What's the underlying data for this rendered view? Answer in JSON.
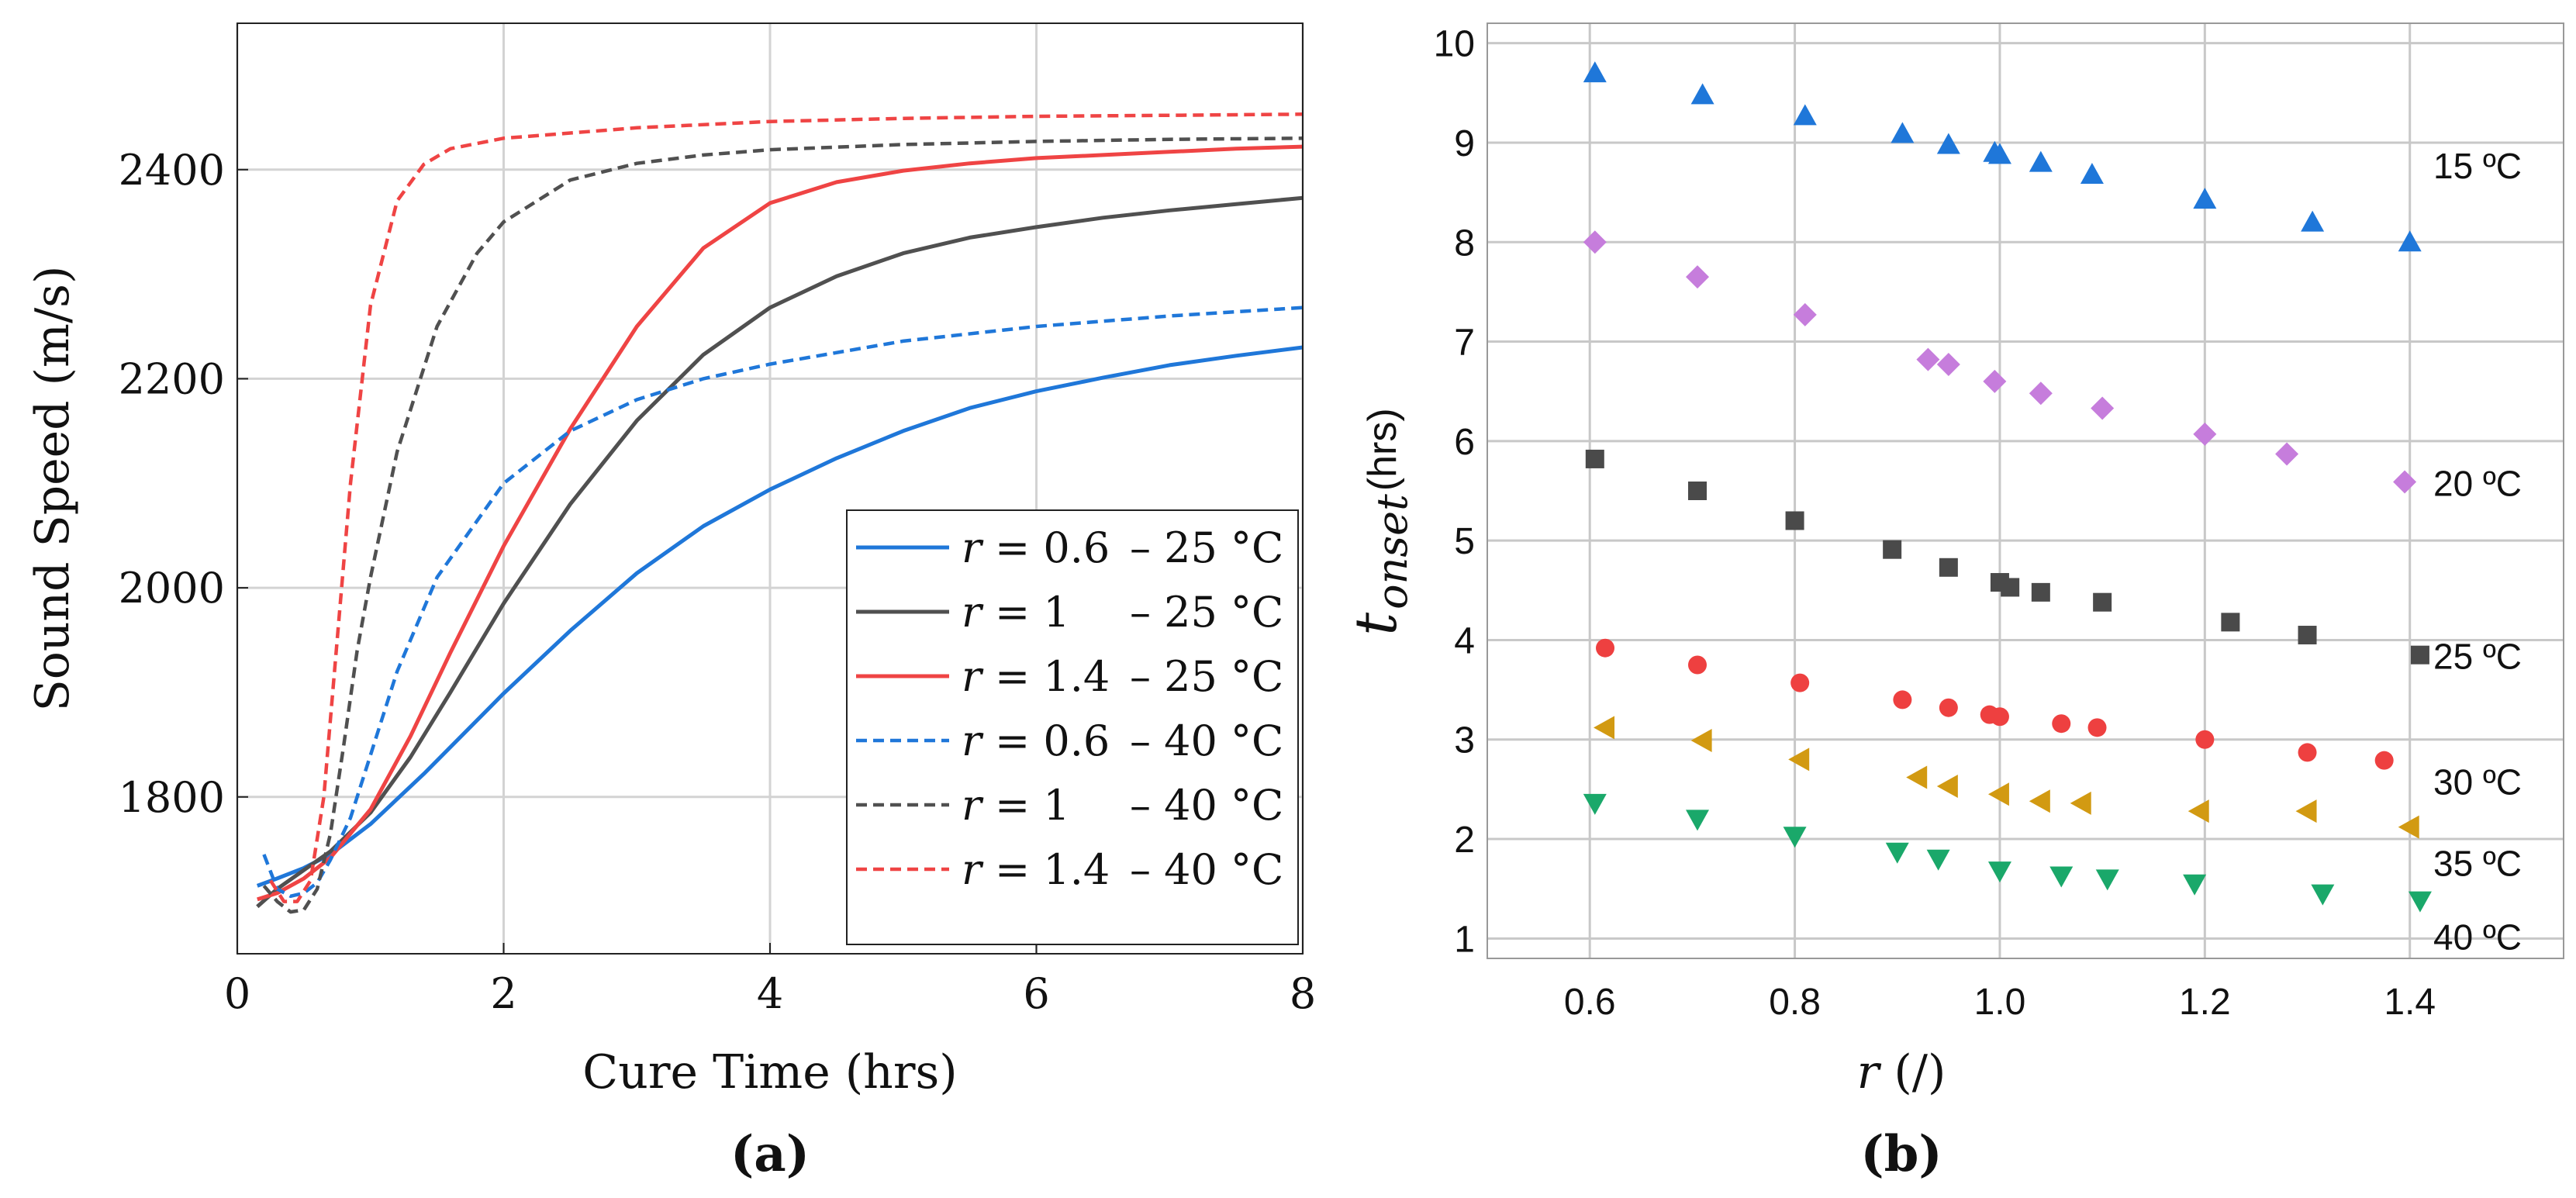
{
  "colors": {
    "blue": "#1f77d9",
    "dark": "#505050",
    "red": "#ef4444",
    "purple": "#c67ddc",
    "gray": "#4a4a4a",
    "red_pt": "#ee4040",
    "orange": "#d29a12",
    "green": "#1aa86a",
    "grid_a": "#d3d3d3",
    "grid_b": "#c8c8c8"
  },
  "chart_data": [
    {
      "panel_label": "(a)",
      "type": "line",
      "title": "",
      "xlabel": "Cure Time (hrs)",
      "ylabel": "Sound Speed (m/s)",
      "xlim": [
        0,
        8
      ],
      "ylim": [
        1650,
        2540
      ],
      "xticks": [
        0,
        2,
        4,
        6,
        8
      ],
      "yticks": [
        1800,
        2000,
        2200,
        2400
      ],
      "grid": true,
      "legend_position": "bottom-right",
      "series": [
        {
          "name": "r = 0.6 – 25 °C",
          "legend_r": "0.6",
          "legend_t": "25 °C",
          "color": "blue",
          "dash": "solid",
          "x": [
            0.15,
            0.3,
            0.5,
            0.7,
            1.0,
            1.4,
            2.0,
            2.5,
            3.0,
            3.5,
            4.0,
            4.5,
            5.0,
            5.5,
            6.0,
            6.5,
            7.0,
            7.5,
            8.0
          ],
          "y": [
            1715,
            1722,
            1732,
            1745,
            1774,
            1822,
            1899,
            1959,
            2014,
            2059,
            2094,
            2124,
            2150,
            2172,
            2188,
            2201,
            2213,
            2222,
            2230
          ]
        },
        {
          "name": "r = 1 – 25 °C",
          "legend_r": "1",
          "legend_t": "25 °C",
          "color": "dark",
          "dash": "solid",
          "x": [
            0.15,
            0.3,
            0.5,
            0.7,
            1.0,
            1.3,
            1.6,
            2.0,
            2.5,
            3.0,
            3.5,
            4.0,
            4.5,
            5.0,
            5.5,
            6.0,
            6.5,
            7.0,
            7.5,
            8.0
          ],
          "y": [
            1695,
            1712,
            1730,
            1748,
            1785,
            1838,
            1900,
            1985,
            2080,
            2160,
            2223,
            2268,
            2298,
            2320,
            2335,
            2345,
            2354,
            2361,
            2367,
            2373
          ]
        },
        {
          "name": "r = 1.4 – 25 °C",
          "legend_r": "1.4",
          "legend_t": "25 °C",
          "color": "red",
          "dash": "solid",
          "x": [
            0.15,
            0.3,
            0.5,
            0.7,
            1.0,
            1.3,
            1.6,
            2.0,
            2.5,
            3.0,
            3.5,
            4.0,
            4.5,
            5.0,
            5.5,
            6.0,
            6.5,
            7.0,
            7.5,
            8.0
          ],
          "y": [
            1702,
            1708,
            1722,
            1742,
            1788,
            1858,
            1938,
            2040,
            2152,
            2250,
            2325,
            2368,
            2388,
            2399,
            2406,
            2411,
            2414,
            2417,
            2420,
            2422
          ]
        },
        {
          "name": "r = 0.6 – 40 °C",
          "legend_r": "0.6",
          "legend_t": "40 °C",
          "color": "blue",
          "dash": "dashed",
          "x": [
            0.2,
            0.3,
            0.4,
            0.5,
            0.6,
            0.7,
            0.85,
            1.0,
            1.2,
            1.5,
            2.0,
            2.5,
            3.0,
            3.5,
            4.0,
            5.0,
            6.0,
            7.0,
            8.0
          ],
          "y": [
            1745,
            1712,
            1705,
            1708,
            1718,
            1740,
            1780,
            1840,
            1920,
            2010,
            2100,
            2150,
            2180,
            2200,
            2214,
            2236,
            2250,
            2260,
            2268
          ]
        },
        {
          "name": "r = 1 – 40 °C",
          "legend_r": "1",
          "legend_t": "40 °C",
          "color": "dark",
          "dash": "dashed",
          "x": [
            0.2,
            0.3,
            0.4,
            0.5,
            0.6,
            0.7,
            0.8,
            0.9,
            1.0,
            1.2,
            1.5,
            1.8,
            2.0,
            2.5,
            3.0,
            3.5,
            4.0,
            5.0,
            6.0,
            7.0,
            8.0
          ],
          "y": [
            1715,
            1700,
            1690,
            1692,
            1712,
            1765,
            1850,
            1940,
            2010,
            2130,
            2250,
            2320,
            2350,
            2390,
            2406,
            2414,
            2419,
            2424,
            2427,
            2429,
            2430
          ]
        },
        {
          "name": "r = 1.4 – 40 °C",
          "legend_r": "1.4",
          "legend_t": "40 °C",
          "color": "red",
          "dash": "dashed",
          "x": [
            0.25,
            0.35,
            0.45,
            0.55,
            0.65,
            0.75,
            0.85,
            1.0,
            1.2,
            1.4,
            1.6,
            2.0,
            3.0,
            4.0,
            5.0,
            6.0,
            7.0,
            8.0
          ],
          "y": [
            1720,
            1700,
            1700,
            1720,
            1800,
            1950,
            2100,
            2270,
            2370,
            2405,
            2420,
            2430,
            2440,
            2446,
            2449,
            2451,
            2452,
            2453
          ]
        }
      ]
    },
    {
      "panel_label": "(b)",
      "type": "scatter",
      "title": "",
      "xlabel": "r (/)",
      "xlabel_r": "r",
      "xlabel_unit": "(/)",
      "ylabel": "t_onset (hrs)",
      "ylabel_main": "t",
      "ylabel_sub": "onset",
      "ylabel_unit": "(hrs)",
      "xlim": [
        0.5,
        1.55
      ],
      "ylim": [
        0.8,
        10.2
      ],
      "xticks": [
        "0.6",
        "0.8",
        "1.0",
        "1.2",
        "1.4"
      ],
      "yticks": [
        "1",
        "2",
        "3",
        "4",
        "5",
        "6",
        "7",
        "8",
        "9",
        "10"
      ],
      "grid": true,
      "series": [
        {
          "name": "15 ºC",
          "marker": "triangle-up",
          "color": "blue",
          "x": [
            0.605,
            0.71,
            0.81,
            0.905,
            0.95,
            0.995,
            1.0,
            1.04,
            1.09,
            1.2,
            1.305,
            1.4
          ],
          "y": [
            9.7,
            9.48,
            9.27,
            9.09,
            8.98,
            8.9,
            8.88,
            8.8,
            8.68,
            8.43,
            8.2,
            8.0
          ]
        },
        {
          "name": "20 ºC",
          "marker": "diamond",
          "color": "purple",
          "x": [
            0.605,
            0.705,
            0.81,
            0.93,
            0.95,
            0.995,
            1.04,
            1.1,
            1.2,
            1.28,
            1.395
          ],
          "y": [
            8.0,
            7.65,
            7.27,
            6.82,
            6.77,
            6.6,
            6.48,
            6.33,
            6.07,
            5.87,
            5.59
          ]
        },
        {
          "name": "25 ºC",
          "marker": "square",
          "color": "gray",
          "x": [
            0.605,
            0.705,
            0.8,
            0.895,
            0.95,
            1.0,
            1.01,
            1.04,
            1.1,
            1.225,
            1.3,
            1.41
          ],
          "y": [
            5.82,
            5.5,
            5.2,
            4.91,
            4.73,
            4.58,
            4.53,
            4.48,
            4.38,
            4.18,
            4.05,
            3.85
          ]
        },
        {
          "name": "30 ºC",
          "marker": "circle",
          "color": "red_pt",
          "x": [
            0.615,
            0.705,
            0.805,
            0.905,
            0.95,
            0.99,
            1.0,
            1.06,
            1.095,
            1.2,
            1.3,
            1.375
          ],
          "y": [
            3.92,
            3.75,
            3.57,
            3.4,
            3.32,
            3.25,
            3.23,
            3.16,
            3.12,
            3.0,
            2.87,
            2.79
          ]
        },
        {
          "name": "35 ºC",
          "marker": "triangle-left",
          "color": "orange",
          "x": [
            0.615,
            0.71,
            0.805,
            0.92,
            0.95,
            1.0,
            1.04,
            1.08,
            1.195,
            1.3,
            1.4
          ],
          "y": [
            3.12,
            2.99,
            2.8,
            2.62,
            2.53,
            2.45,
            2.38,
            2.36,
            2.28,
            2.28,
            2.12
          ]
        },
        {
          "name": "40 ºC",
          "marker": "triangle-down",
          "color": "green",
          "x": [
            0.605,
            0.705,
            0.8,
            0.9,
            0.94,
            1.0,
            1.06,
            1.105,
            1.19,
            1.315,
            1.41
          ],
          "y": [
            2.36,
            2.2,
            2.03,
            1.87,
            1.8,
            1.68,
            1.63,
            1.6,
            1.55,
            1.45,
            1.38
          ]
        }
      ]
    }
  ]
}
